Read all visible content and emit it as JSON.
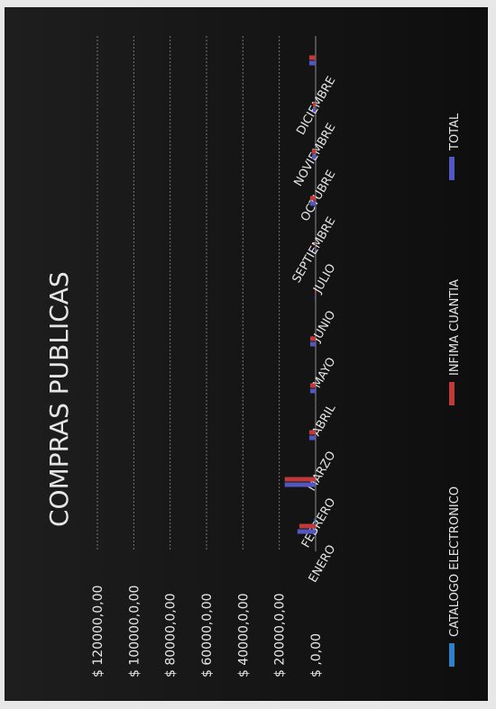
{
  "chart_data": {
    "type": "bar",
    "orientation": "horizontal",
    "title": "COMPRAS PUBLICAS",
    "categories": [
      "ENERO",
      "FEBRERO",
      "MARZO",
      "ABRIL",
      "MAYO",
      "JUNIO",
      "JULIO",
      "SEPTIEMBRE",
      "OCTUBRE",
      "NOVIEMBRE",
      "DICIEMBRE"
    ],
    "series": [
      {
        "name": "CATALOGO ELECTRONICO",
        "color": "#2f80c8",
        "values": [
          800,
          0,
          0,
          0,
          0,
          0,
          0,
          0,
          0,
          0,
          0
        ]
      },
      {
        "name": "INFIMA CUANTIA",
        "color": "#c03a3a",
        "values": [
          9000,
          17000,
          3500,
          3000,
          3000,
          500,
          500,
          3000,
          2000,
          1500,
          3500
        ]
      },
      {
        "name": "TOTAL",
        "color": "#5358c0",
        "values": [
          10000,
          17000,
          3500,
          3000,
          3000,
          500,
          500,
          3000,
          2000,
          1500,
          3500
        ]
      }
    ],
    "value_axis": {
      "min": 0,
      "max": 120000,
      "step": 20000,
      "tick_labels": [
        "$ ,0,00",
        "$ 20000,0,00",
        "$ 40000,0,00",
        "$ 60000,0,00",
        "$ 80000,0,00",
        "$ 100000,0,00",
        "$ 120000,0,00"
      ]
    },
    "grid": true,
    "legend_position": "bottom"
  }
}
